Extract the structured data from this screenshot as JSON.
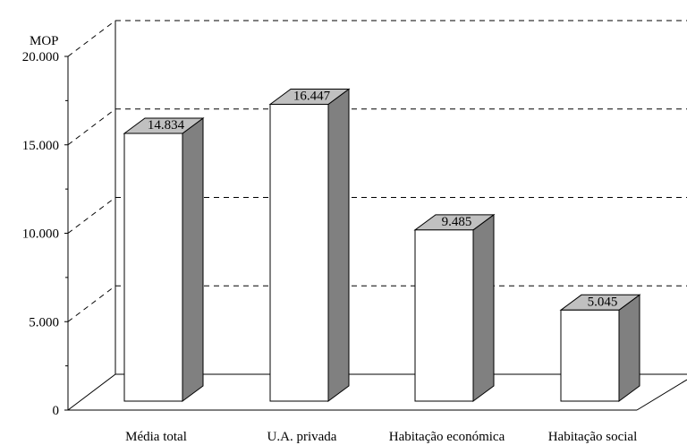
{
  "chart_data": {
    "type": "bar",
    "style": "3d-column",
    "unit_label": "MOP",
    "categories": [
      "Média total",
      "U.A. privada",
      "Habitação económica",
      "Habitação social"
    ],
    "values": [
      14834,
      16447,
      9485,
      5045
    ],
    "value_labels": [
      "14.834",
      "16.447",
      "9.485",
      "5.045"
    ],
    "yticks": [
      0,
      5000,
      10000,
      15000,
      20000
    ],
    "ytick_labels": [
      "0",
      "5.000",
      "10.000",
      "15.000",
      "20.000"
    ],
    "ylim": [
      0,
      20000
    ],
    "grid": true,
    "legend": "none",
    "colors": {
      "front": "#ffffff",
      "top": "#c0c0c0",
      "side": "#808080",
      "outline": "#000000"
    }
  }
}
